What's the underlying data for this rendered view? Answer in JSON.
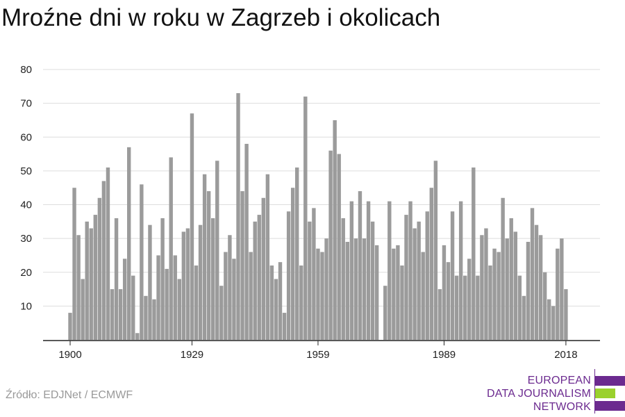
{
  "title": "Mroźne dni w roku w Zagrzeb i okolicach",
  "source": "Źródło: EDJNet / ECMWF",
  "logo": {
    "lines": [
      "EUROPEAN",
      "DATA JOURNALISM",
      "NETWORK"
    ],
    "colors": [
      "#6b2a8f",
      "#9ad12d",
      "#6b2a8f"
    ]
  },
  "colors": {
    "bar": "#9b9b9b",
    "grid": "#dddddd",
    "axis": "#222222"
  },
  "chart_data": {
    "type": "bar",
    "x_ticks": [
      1900,
      1929,
      1959,
      1989,
      2018
    ],
    "y_ticks": [
      10,
      20,
      30,
      40,
      50,
      60,
      70,
      80
    ],
    "ylim": [
      0,
      80
    ],
    "xlim": [
      1900,
      2021
    ],
    "x": [
      1900,
      1901,
      1902,
      1903,
      1904,
      1905,
      1906,
      1907,
      1908,
      1909,
      1910,
      1911,
      1912,
      1913,
      1914,
      1915,
      1916,
      1917,
      1918,
      1919,
      1920,
      1921,
      1922,
      1923,
      1924,
      1925,
      1926,
      1927,
      1928,
      1929,
      1930,
      1931,
      1932,
      1933,
      1934,
      1935,
      1936,
      1937,
      1938,
      1939,
      1940,
      1941,
      1942,
      1943,
      1944,
      1945,
      1946,
      1947,
      1948,
      1949,
      1950,
      1951,
      1952,
      1953,
      1954,
      1955,
      1956,
      1957,
      1958,
      1959,
      1960,
      1961,
      1962,
      1963,
      1964,
      1965,
      1966,
      1967,
      1968,
      1969,
      1970,
      1971,
      1972,
      1973,
      1974,
      1975,
      1976,
      1977,
      1978,
      1979,
      1980,
      1981,
      1982,
      1983,
      1984,
      1985,
      1986,
      1987,
      1988,
      1989,
      1990,
      1991,
      1992,
      1993,
      1994,
      1995,
      1996,
      1997,
      1998,
      1999,
      2000,
      2001,
      2002,
      2003,
      2004,
      2005,
      2006,
      2007,
      2008,
      2009,
      2010,
      2011,
      2012,
      2013,
      2014,
      2015,
      2016,
      2017,
      2018
    ],
    "values": [
      8,
      45,
      31,
      18,
      35,
      33,
      37,
      42,
      47,
      51,
      15,
      36,
      15,
      24,
      57,
      19,
      2,
      46,
      13,
      34,
      12,
      25,
      36,
      21,
      54,
      25,
      18,
      32,
      33,
      67,
      22,
      34,
      49,
      44,
      36,
      53,
      16,
      26,
      31,
      24,
      73,
      44,
      58,
      26,
      35,
      37,
      42,
      49,
      22,
      18,
      23,
      8,
      38,
      45,
      51,
      22,
      72,
      35,
      39,
      27,
      26,
      30,
      56,
      65,
      55,
      36,
      29,
      41,
      30,
      44,
      30,
      41,
      35,
      28,
      0,
      16,
      41,
      27,
      28,
      22,
      37,
      41,
      33,
      35,
      26,
      38,
      45,
      53,
      15,
      28,
      23,
      38,
      19,
      41,
      19,
      24,
      51,
      19,
      31,
      33,
      22,
      27,
      26,
      42,
      30,
      36,
      32,
      19,
      13,
      29,
      39,
      34,
      31,
      20,
      12,
      10,
      27,
      30,
      15
    ]
  }
}
